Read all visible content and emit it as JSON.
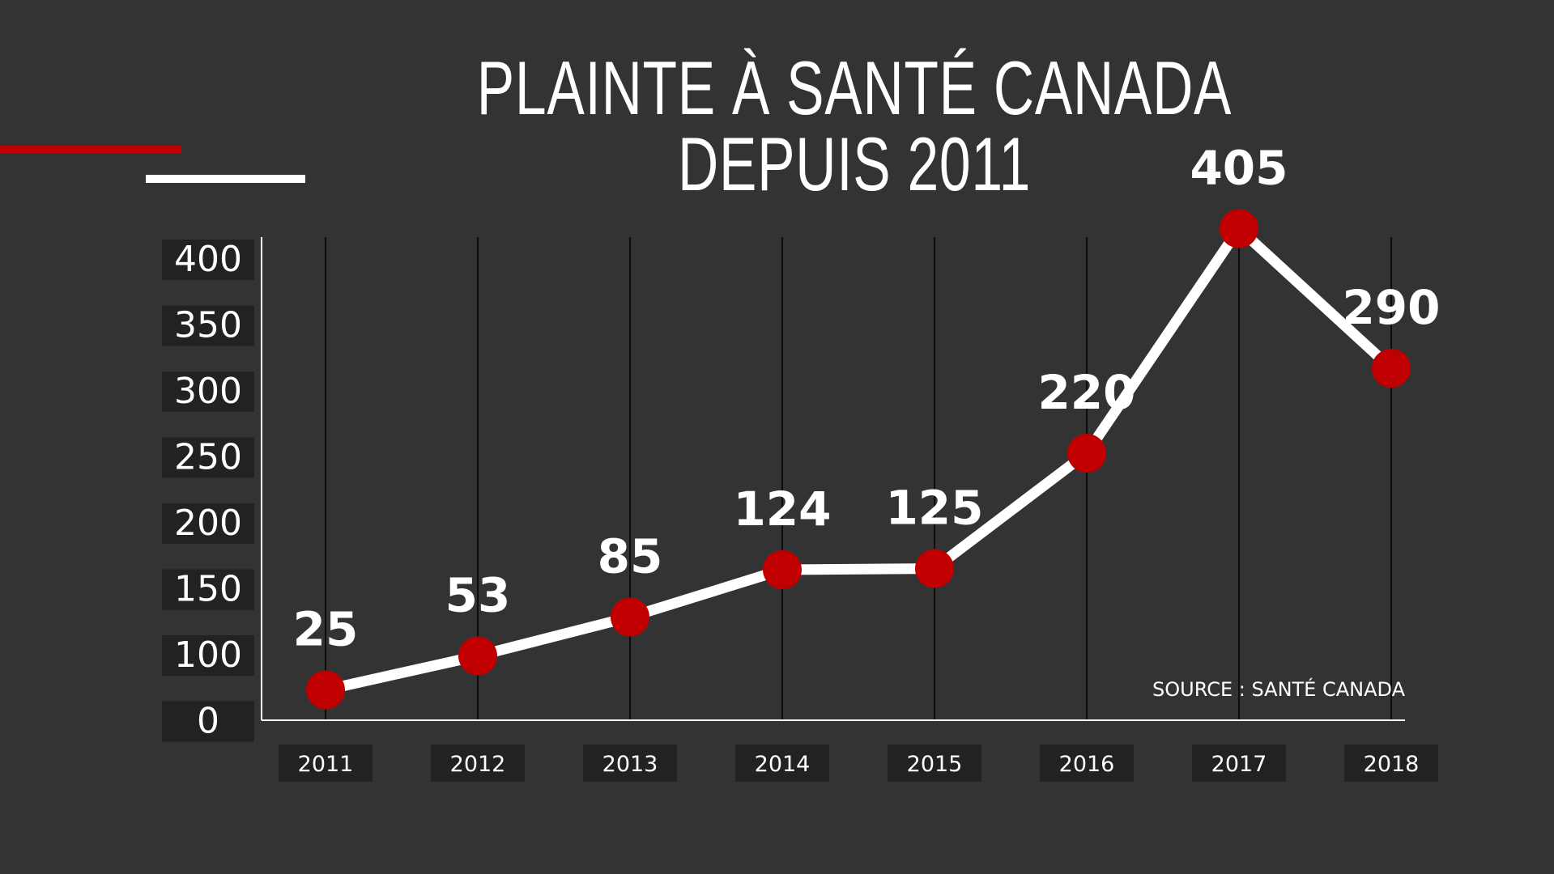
{
  "chart_data": {
    "type": "line",
    "title": "PLAINTE À SANTÉ CANADA DEPUIS 2011",
    "source": "SOURCE : SANTÉ CANADA",
    "categories": [
      "2011",
      "2012",
      "2013",
      "2014",
      "2015",
      "2016",
      "2017",
      "2018"
    ],
    "series": [
      {
        "values": [
          25,
          53,
          85,
          124,
          125,
          220,
          405,
          290
        ],
        "data_labels": [
          "25",
          "53",
          "85",
          "124",
          "125",
          "220",
          "405",
          "290"
        ]
      }
    ],
    "yticks": [
      "0",
      "100",
      "150",
      "200",
      "250",
      "300",
      "350",
      "400"
    ],
    "ylim": [
      0,
      400
    ],
    "grid": "vertical",
    "colors": {
      "background": "#333333",
      "line": "#ffffff",
      "marker": "#c00000",
      "tick_box": "#222222"
    }
  }
}
